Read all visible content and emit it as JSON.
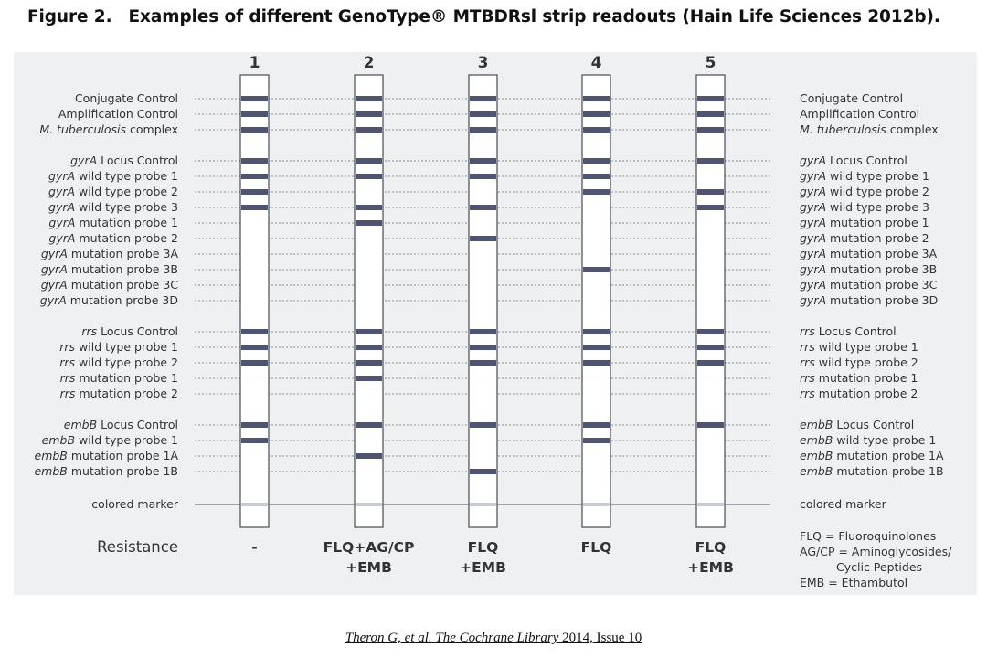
{
  "figure": {
    "number": "Figure 2.",
    "title": "Examples of different GenoType® MTBDRsl strip readouts (Hain Life Sciences 2012b)."
  },
  "rows": [
    {
      "group": 0,
      "italic": "",
      "rest": "Conjugate Control"
    },
    {
      "group": 0,
      "italic": "",
      "rest": "Amplification Control"
    },
    {
      "group": 0,
      "italic": "M. tuberculosis",
      "rest": " complex"
    },
    {
      "group": 1,
      "italic": "gyrA",
      "rest": " Locus Control"
    },
    {
      "group": 1,
      "italic": "gyrA",
      "rest": " wild type probe 1"
    },
    {
      "group": 1,
      "italic": "gyrA",
      "rest": " wild type probe 2"
    },
    {
      "group": 1,
      "italic": "gyrA",
      "rest": " wild type probe 3"
    },
    {
      "group": 1,
      "italic": "gyrA",
      "rest": " mutation probe 1"
    },
    {
      "group": 1,
      "italic": "gyrA",
      "rest": " mutation probe 2"
    },
    {
      "group": 1,
      "italic": "gyrA",
      "rest": " mutation probe 3A"
    },
    {
      "group": 1,
      "italic": "gyrA",
      "rest": " mutation probe 3B"
    },
    {
      "group": 1,
      "italic": "gyrA",
      "rest": " mutation probe 3C"
    },
    {
      "group": 1,
      "italic": "gyrA",
      "rest": " mutation probe 3D"
    },
    {
      "group": 2,
      "italic": "rrs",
      "rest": " Locus Control"
    },
    {
      "group": 2,
      "italic": "rrs",
      "rest": " wild type probe 1"
    },
    {
      "group": 2,
      "italic": "rrs",
      "rest": " wild type probe 2"
    },
    {
      "group": 2,
      "italic": "rrs",
      "rest": " mutation probe 1"
    },
    {
      "group": 2,
      "italic": "rrs",
      "rest": " mutation probe 2"
    },
    {
      "group": 3,
      "italic": "embB",
      "rest": " Locus Control"
    },
    {
      "group": 3,
      "italic": "embB",
      "rest": " wild type probe 1"
    },
    {
      "group": 3,
      "italic": "embB",
      "rest": " mutation probe 1A"
    },
    {
      "group": 3,
      "italic": "embB",
      "rest": " mutation probe 1B"
    }
  ],
  "marker_label": "colored marker",
  "strips": [
    {
      "number": "1",
      "bands": [
        0,
        1,
        2,
        3,
        4,
        5,
        6,
        13,
        14,
        15,
        18,
        19
      ],
      "resistance": [
        "-"
      ]
    },
    {
      "number": "2",
      "bands": [
        0,
        1,
        2,
        3,
        4,
        6,
        7,
        13,
        14,
        15,
        16,
        18,
        20
      ],
      "resistance": [
        "FLQ+AG/CP",
        "+EMB"
      ]
    },
    {
      "number": "3",
      "bands": [
        0,
        1,
        2,
        3,
        4,
        6,
        8,
        13,
        14,
        15,
        18,
        21
      ],
      "resistance": [
        "FLQ",
        "+EMB"
      ]
    },
    {
      "number": "4",
      "bands": [
        0,
        1,
        2,
        3,
        4,
        5,
        10,
        13,
        14,
        15,
        18,
        19
      ],
      "resistance": [
        "FLQ"
      ]
    },
    {
      "number": "5",
      "bands": [
        0,
        1,
        2,
        3,
        5,
        6,
        13,
        14,
        15,
        18
      ],
      "resistance": [
        "FLQ",
        "+EMB"
      ]
    }
  ],
  "resistance_label": "Resistance",
  "legend": [
    "FLQ = Fluoroquinolones",
    "AG/CP = Aminoglycosides/",
    "Cyclic Peptides",
    "EMB = Ethambutol"
  ],
  "citation": {
    "authors": "Theron G, et al.",
    "journal": "The Cochrane Library",
    "issue": "2014, Issue 10"
  },
  "colors": {
    "band": "#4d5474",
    "panel": "#eef0f1",
    "strip": "#ffffff",
    "text": "#333333"
  }
}
